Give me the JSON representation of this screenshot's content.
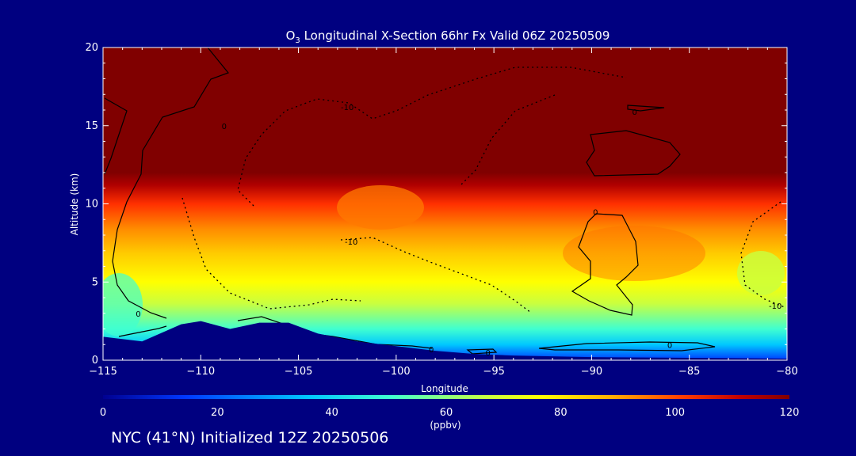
{
  "chart_data": {
    "type": "heatmap",
    "title_prefix": "O",
    "title_sub": "3",
    "title_rest": " Longitudinal X-Section 66hr  Fx Valid 06Z 20250509",
    "xlabel": "Longitude",
    "ylabel": "Altitude (km)",
    "xlim": [
      -115,
      -80
    ],
    "ylim": [
      0,
      20
    ],
    "x_ticks": [
      -115,
      -110,
      -105,
      -100,
      -95,
      -90,
      -85,
      -80
    ],
    "x_tick_labels": [
      "−115",
      "−110",
      "−105",
      "−100",
      "−95",
      "−90",
      "−85",
      "−80"
    ],
    "y_ticks": [
      0,
      5,
      10,
      15,
      20
    ],
    "y_tick_labels": [
      "0",
      "5",
      "10",
      "15",
      "20"
    ],
    "colorbar": {
      "min": 0,
      "max": 120,
      "ticks": [
        0,
        20,
        40,
        60,
        80,
        100,
        120
      ],
      "tick_labels": [
        "0",
        "20",
        "40",
        "60",
        "80",
        "100",
        "120"
      ],
      "unit_label": "(ppbv)",
      "colors": [
        "#000090",
        "#0038ff",
        "#00c8ff",
        "#40ffd0",
        "#c8ff40",
        "#ffff00",
        "#ffb000",
        "#ff4000",
        "#c00000",
        "#800000"
      ]
    },
    "terrain_km": [
      [
        -115,
        1.5
      ],
      [
        -113,
        1.2
      ],
      [
        -111,
        2.3
      ],
      [
        -110,
        2.5
      ],
      [
        -108.5,
        2.0
      ],
      [
        -107,
        2.4
      ],
      [
        -105.5,
        2.4
      ],
      [
        -104,
        1.7
      ],
      [
        -102,
        1.2
      ],
      [
        -100,
        0.9
      ],
      [
        -98,
        0.6
      ],
      [
        -96,
        0.4
      ],
      [
        -94,
        0.3
      ],
      [
        -90,
        0.2
      ],
      [
        -85,
        0.15
      ],
      [
        -80,
        0.1
      ]
    ],
    "contour_labels": [
      {
        "text": "-10",
        "lon": -102.5,
        "alt": 16.2
      },
      {
        "text": "-10",
        "lon": -102.3,
        "alt": 7.6
      },
      {
        "text": "-10",
        "lon": -80.6,
        "alt": 3.5
      },
      {
        "text": "0",
        "lon": -113.2,
        "alt": 3.0
      },
      {
        "text": "0",
        "lon": -98.2,
        "alt": 0.7
      },
      {
        "text": "0",
        "lon": -95.3,
        "alt": 0.5
      },
      {
        "text": "0",
        "lon": -89.8,
        "alt": 9.5
      },
      {
        "text": "0",
        "lon": -87.8,
        "alt": 15.9
      },
      {
        "text": "0",
        "lon": -86,
        "alt": 1.0
      },
      {
        "text": "0",
        "lon": -108.8,
        "alt": 15.0
      }
    ]
  },
  "footer": {
    "text": "NYC (41°N) Initialized 12Z 20250506"
  }
}
